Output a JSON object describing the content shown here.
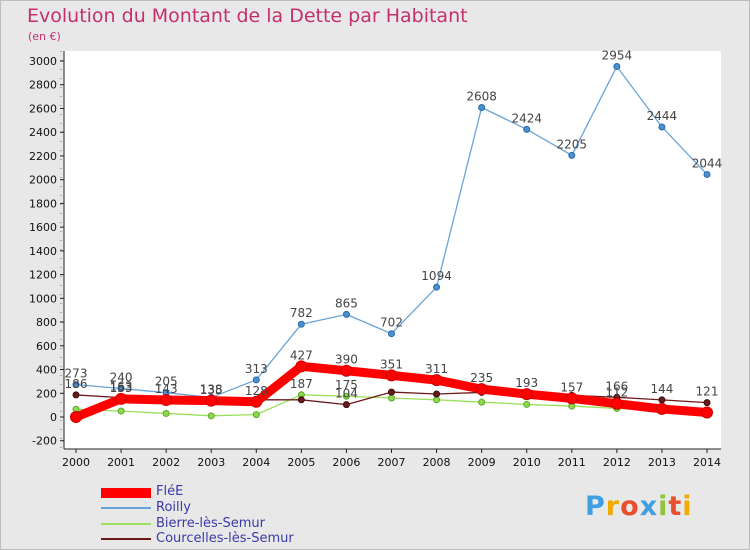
{
  "chart_data": {
    "type": "line",
    "title": "Evolution du Montant de la Dette par Habitant",
    "subtitle": "(en €)",
    "x": [
      "2000",
      "2001",
      "2002",
      "2003",
      "2004",
      "2005",
      "2006",
      "2007",
      "2008",
      "2009",
      "2010",
      "2011",
      "2012",
      "2013",
      "2014"
    ],
    "ylim": [
      -200,
      3000
    ],
    "yticks": [
      -200,
      0,
      200,
      400,
      600,
      800,
      1000,
      1200,
      1400,
      1600,
      1800,
      2000,
      2200,
      2400,
      2600,
      2800,
      3000
    ],
    "grid": false,
    "legend_position": "bottom-left",
    "series": [
      {
        "name": "FléE",
        "color": "#ff0000",
        "values": [
          0,
          153,
          143,
          138,
          128,
          427,
          390,
          351,
          311,
          235,
          193,
          157,
          112,
          68,
          38
        ],
        "labels": [
          "",
          "153",
          "143",
          "138",
          "128",
          "427",
          "390",
          "351",
          "311",
          "235",
          "193",
          "157",
          "112",
          "",
          ""
        ]
      },
      {
        "name": "Roilly",
        "color": "#6aa3d8",
        "values": [
          273,
          240,
          205,
          165,
          313,
          782,
          865,
          702,
          1094,
          2608,
          2424,
          2205,
          2954,
          2444,
          2044
        ],
        "labels": [
          "273",
          "240",
          "205",
          "",
          "313",
          "782",
          "865",
          "702",
          "1094",
          "2608",
          "2424",
          "2205",
          "2954",
          "2444",
          "2044"
        ]
      },
      {
        "name": "Bierre-lès-Semur",
        "color": "#9be05a",
        "values": [
          65,
          50,
          30,
          10,
          20,
          187,
          175,
          160,
          145,
          125,
          106,
          92,
          72,
          55,
          43
        ],
        "labels": [
          "",
          "",
          "",
          "",
          "",
          "187",
          "175",
          "",
          "",
          "",
          "",
          "",
          "",
          "",
          ""
        ]
      },
      {
        "name": "Courcelles-lès-Semur",
        "color": "#6b1a1a",
        "values": [
          186,
          163,
          136,
          135,
          145,
          145,
          104,
          210,
          194,
          207,
          185,
          182,
          166,
          144,
          121
        ],
        "labels": [
          "186",
          "163",
          "",
          "135",
          "",
          "",
          "104",
          "",
          "",
          "",
          "",
          "",
          "166",
          "144",
          "121"
        ]
      }
    ]
  },
  "branding": {
    "logo_letters": [
      "P",
      "r",
      "o",
      "x",
      "i",
      "t",
      "i"
    ],
    "logo_colors": [
      "#3f9fe0",
      "#f2a900",
      "#e84f2e",
      "#3f9fe0",
      "#8fc43c",
      "#e84f2e",
      "#f2a900"
    ]
  }
}
